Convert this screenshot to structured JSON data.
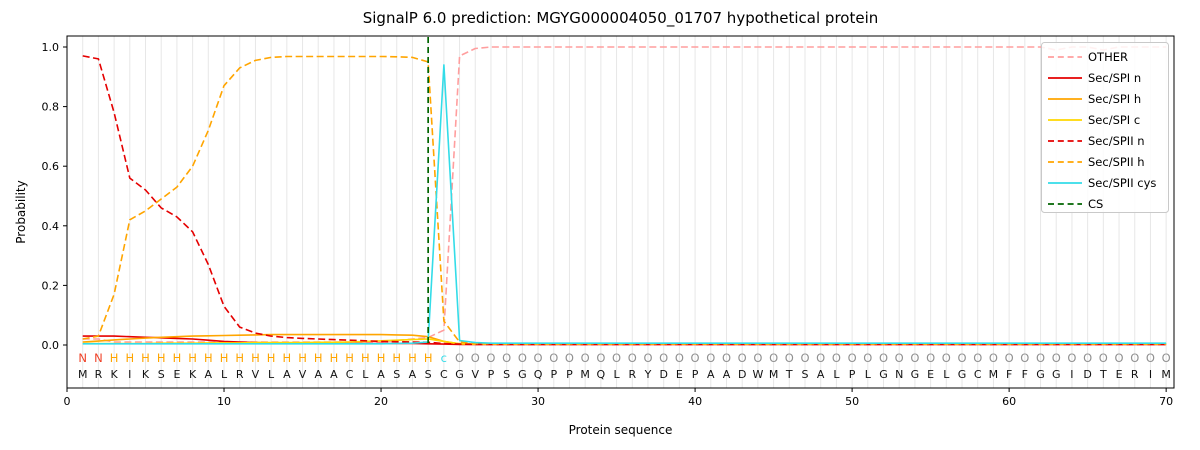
{
  "chart_data": {
    "type": "line",
    "title": "SignalP 6.0 prediction: MGYG000004050_01707 hypothetical protein",
    "xlabel": "Protein sequence",
    "ylabel": "Probability",
    "xlim": [
      0,
      70.5
    ],
    "ylim": [
      -0.145,
      1.04
    ],
    "xticks": [
      0,
      10,
      20,
      30,
      40,
      50,
      60,
      70
    ],
    "yticks": [
      0.0,
      0.2,
      0.4,
      0.6,
      0.8,
      1.0
    ],
    "grid": true,
    "grid_color": "#e7e7e7",
    "legend_position": "upper right",
    "sequence": "MRKIKSEKALRVLAVAACLASASCGVPSGQPPMQLRYDEPAADWMTSALPLGNGELGCMFFGGIDTERIM",
    "annotation": "NNHHHHHHHHHHHHHHHHHHHHHcOOOOOOOOOOOOOOOOOOOOOOOOOOOOOOOOOOOOOOOOOOOOOO",
    "annotation_colors": {
      "N": "#ef4026",
      "H": "#ffa500",
      "c": "#33dce8",
      "O": "#909090"
    },
    "cs": {
      "label": "CS",
      "x": 23,
      "color": "#006400"
    },
    "series": [
      {
        "name": "OTHER",
        "color": "#ff9e9e",
        "dash": true,
        "values": [
          0.02,
          0.02,
          0.01,
          0.01,
          0.01,
          0.01,
          0.01,
          0.01,
          0.01,
          0.01,
          0.01,
          0.01,
          0.01,
          0.01,
          0.01,
          0.01,
          0.01,
          0.01,
          0.01,
          0.01,
          0.015,
          0.02,
          0.025,
          0.05,
          0.97,
          0.995,
          1.0,
          1.0,
          1.0,
          1.0,
          1.0,
          1.0,
          1.0,
          1.0,
          1.0,
          1.0,
          1.0,
          1.0,
          1.0,
          1.0,
          1.0,
          1.0,
          1.0,
          1.0,
          1.0,
          1.0,
          1.0,
          1.0,
          1.0,
          1.0,
          1.0,
          1.0,
          1.0,
          1.0,
          1.0,
          1.0,
          1.0,
          1.0,
          1.0,
          1.0,
          1.0,
          1.0,
          0.99,
          1.0,
          1.0,
          0.99,
          1.0,
          1.0,
          1.0,
          1.0
        ]
      },
      {
        "name": "Sec/SPI n",
        "color": "#e50000",
        "dash": false,
        "values": [
          0.03,
          0.03,
          0.03,
          0.028,
          0.026,
          0.024,
          0.022,
          0.02,
          0.016,
          0.012,
          0.01,
          0.008,
          0.007,
          0.006,
          0.006,
          0.005,
          0.005,
          0.005,
          0.005,
          0.005,
          0.005,
          0.005,
          0.004,
          0.003,
          0.002,
          0.002,
          0.002,
          0.002,
          0.002,
          0.002,
          0.002,
          0.002,
          0.002,
          0.002,
          0.002,
          0.002,
          0.002,
          0.002,
          0.002,
          0.002,
          0.002,
          0.002,
          0.002,
          0.002,
          0.002,
          0.002,
          0.002,
          0.002,
          0.002,
          0.002,
          0.002,
          0.002,
          0.002,
          0.002,
          0.002,
          0.002,
          0.002,
          0.002,
          0.002,
          0.002,
          0.002,
          0.002,
          0.002,
          0.002,
          0.002,
          0.002,
          0.002,
          0.002,
          0.002,
          0.002
        ]
      },
      {
        "name": "Sec/SPI h",
        "color": "#ffa500",
        "dash": false,
        "values": [
          0.01,
          0.013,
          0.017,
          0.02,
          0.023,
          0.026,
          0.028,
          0.03,
          0.031,
          0.032,
          0.033,
          0.034,
          0.035,
          0.035,
          0.035,
          0.035,
          0.035,
          0.035,
          0.035,
          0.035,
          0.034,
          0.033,
          0.028,
          0.012,
          0.004,
          0.003,
          0.003,
          0.003,
          0.003,
          0.003,
          0.003,
          0.003,
          0.003,
          0.003,
          0.003,
          0.003,
          0.003,
          0.003,
          0.003,
          0.003,
          0.003,
          0.003,
          0.003,
          0.003,
          0.003,
          0.003,
          0.003,
          0.003,
          0.003,
          0.003,
          0.003,
          0.003,
          0.003,
          0.003,
          0.003,
          0.003,
          0.003,
          0.003,
          0.003,
          0.003,
          0.003,
          0.003,
          0.003,
          0.003,
          0.003,
          0.003,
          0.003,
          0.003,
          0.003,
          0.003
        ]
      },
      {
        "name": "Sec/SPI c",
        "color": "#ffd700",
        "dash": false,
        "values": [
          0.005,
          0.005,
          0.005,
          0.005,
          0.005,
          0.006,
          0.006,
          0.006,
          0.007,
          0.007,
          0.007,
          0.008,
          0.008,
          0.008,
          0.008,
          0.009,
          0.009,
          0.01,
          0.012,
          0.014,
          0.016,
          0.018,
          0.02,
          0.012,
          0.004,
          0.003,
          0.003,
          0.003,
          0.003,
          0.003,
          0.003,
          0.003,
          0.003,
          0.003,
          0.003,
          0.003,
          0.003,
          0.003,
          0.003,
          0.003,
          0.003,
          0.003,
          0.003,
          0.003,
          0.003,
          0.003,
          0.003,
          0.003,
          0.003,
          0.003,
          0.003,
          0.003,
          0.003,
          0.003,
          0.003,
          0.003,
          0.003,
          0.003,
          0.003,
          0.003,
          0.003,
          0.003,
          0.003,
          0.003,
          0.003,
          0.003,
          0.003,
          0.003,
          0.003,
          0.003
        ]
      },
      {
        "name": "Sec/SPII n",
        "color": "#e50000",
        "dash": true,
        "values": [
          0.97,
          0.96,
          0.78,
          0.56,
          0.52,
          0.46,
          0.43,
          0.38,
          0.27,
          0.13,
          0.06,
          0.04,
          0.03,
          0.025,
          0.022,
          0.02,
          0.018,
          0.016,
          0.014,
          0.012,
          0.011,
          0.01,
          0.009,
          0.005,
          0.003,
          0.002,
          0.002,
          0.002,
          0.002,
          0.002,
          0.002,
          0.002,
          0.002,
          0.002,
          0.002,
          0.002,
          0.002,
          0.002,
          0.002,
          0.002,
          0.002,
          0.002,
          0.002,
          0.002,
          0.002,
          0.002,
          0.002,
          0.002,
          0.002,
          0.002,
          0.002,
          0.002,
          0.002,
          0.002,
          0.002,
          0.002,
          0.002,
          0.002,
          0.002,
          0.002,
          0.002,
          0.002,
          0.002,
          0.002,
          0.002,
          0.002,
          0.002,
          0.002,
          0.002,
          0.002
        ]
      },
      {
        "name": "Sec/SPII h",
        "color": "#ffa500",
        "dash": true,
        "values": [
          0.02,
          0.03,
          0.17,
          0.42,
          0.45,
          0.49,
          0.53,
          0.6,
          0.72,
          0.87,
          0.93,
          0.955,
          0.965,
          0.968,
          0.968,
          0.968,
          0.968,
          0.968,
          0.968,
          0.968,
          0.967,
          0.965,
          0.95,
          0.08,
          0.01,
          0.005,
          0.004,
          0.004,
          0.004,
          0.004,
          0.004,
          0.004,
          0.004,
          0.004,
          0.004,
          0.004,
          0.004,
          0.004,
          0.004,
          0.004,
          0.004,
          0.004,
          0.004,
          0.004,
          0.004,
          0.004,
          0.004,
          0.004,
          0.004,
          0.004,
          0.004,
          0.004,
          0.004,
          0.004,
          0.004,
          0.004,
          0.004,
          0.004,
          0.004,
          0.004,
          0.004,
          0.004,
          0.004,
          0.004,
          0.004,
          0.004,
          0.004,
          0.004,
          0.004,
          0.004
        ]
      },
      {
        "name": "Sec/SPII cys",
        "color": "#33dce8",
        "dash": false,
        "values": [
          0.004,
          0.004,
          0.004,
          0.004,
          0.004,
          0.004,
          0.004,
          0.004,
          0.004,
          0.004,
          0.004,
          0.004,
          0.004,
          0.004,
          0.004,
          0.004,
          0.004,
          0.004,
          0.004,
          0.004,
          0.005,
          0.006,
          0.01,
          0.94,
          0.015,
          0.008,
          0.006,
          0.006,
          0.006,
          0.006,
          0.006,
          0.006,
          0.006,
          0.006,
          0.006,
          0.006,
          0.006,
          0.006,
          0.006,
          0.006,
          0.006,
          0.006,
          0.006,
          0.006,
          0.006,
          0.006,
          0.006,
          0.006,
          0.006,
          0.006,
          0.006,
          0.006,
          0.006,
          0.006,
          0.006,
          0.006,
          0.006,
          0.006,
          0.006,
          0.006,
          0.006,
          0.006,
          0.006,
          0.006,
          0.006,
          0.006,
          0.006,
          0.006,
          0.006,
          0.006
        ]
      }
    ]
  }
}
